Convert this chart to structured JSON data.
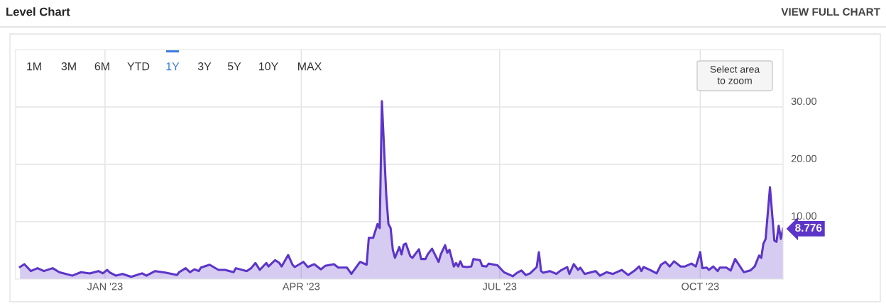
{
  "chart_data": {
    "type": "area",
    "title": "Level Chart",
    "annotations": [
      "VIEW FULL CHART",
      "1M",
      "3M",
      "6M",
      "YTD",
      "1Y",
      "3Y",
      "5Y",
      "10Y",
      "MAX",
      "Select area\nto zoom",
      {
        "text": "8.776",
        "x": "2023-11-08",
        "y": 8.776
      }
    ],
    "x": [
      "2022-11-23",
      "2022-11-25",
      "2022-11-28",
      "2022-12-01",
      "2022-12-04",
      "2022-12-08",
      "2022-12-11",
      "2022-12-17",
      "2022-12-21",
      "2022-12-25",
      "2022-12-29",
      "2022-12-31",
      "2023-01-02",
      "2023-01-03",
      "2023-01-06",
      "2023-01-09",
      "2023-01-13",
      "2023-01-18",
      "2023-01-20",
      "2023-01-24",
      "2023-01-29",
      "2023-02-03",
      "2023-02-04",
      "2023-02-07",
      "2023-02-09",
      "2023-02-11",
      "2023-02-13",
      "2023-02-14",
      "2023-02-18",
      "2023-02-22",
      "2023-02-25",
      "2023-03-01",
      "2023-03-02",
      "2023-03-07",
      "2023-03-09",
      "2023-03-11",
      "2023-03-13",
      "2023-03-16",
      "2023-03-17",
      "2023-03-20",
      "2023-03-22",
      "2023-03-23",
      "2023-03-26",
      "2023-03-28",
      "2023-03-29",
      "2023-04-02",
      "2023-04-04",
      "2023-04-07",
      "2023-04-10",
      "2023-04-12",
      "2023-04-16",
      "2023-04-18",
      "2023-04-22",
      "2023-04-24",
      "2023-04-28",
      "2023-05-01",
      "2023-05-02",
      "2023-05-04",
      "2023-05-06",
      "2023-05-07",
      "2023-05-08",
      "2023-05-10",
      "2023-05-11",
      "2023-05-12",
      "2023-05-13",
      "2023-05-14",
      "2023-05-16",
      "2023-05-17",
      "2023-05-18",
      "2023-05-19",
      "2023-05-21",
      "2023-05-22",
      "2023-05-25",
      "2023-05-26",
      "2023-05-28",
      "2023-05-29",
      "2023-05-31",
      "2023-06-03",
      "2023-06-04",
      "2023-06-06",
      "2023-06-07",
      "2023-06-08",
      "2023-06-10",
      "2023-06-11",
      "2023-06-12",
      "2023-06-13",
      "2023-06-14",
      "2023-06-16",
      "2023-06-18",
      "2023-06-19",
      "2023-06-22",
      "2023-06-23",
      "2023-06-25",
      "2023-06-26",
      "2023-06-30",
      "2023-07-03",
      "2023-07-07",
      "2023-07-09",
      "2023-07-11",
      "2023-07-13",
      "2023-07-15",
      "2023-07-18",
      "2023-07-19",
      "2023-07-20",
      "2023-07-21",
      "2023-07-24",
      "2023-07-27",
      "2023-07-29",
      "2023-08-01",
      "2023-08-02",
      "2023-08-04",
      "2023-08-06",
      "2023-08-07",
      "2023-08-09",
      "2023-08-14",
      "2023-08-16",
      "2023-08-19",
      "2023-08-22",
      "2023-08-26",
      "2023-08-29",
      "2023-09-01",
      "2023-09-03",
      "2023-09-04",
      "2023-09-05",
      "2023-09-08",
      "2023-09-11",
      "2023-09-13",
      "2023-09-15",
      "2023-09-17",
      "2023-09-19",
      "2023-09-22",
      "2023-09-24",
      "2023-09-27",
      "2023-09-29",
      "2023-10-01",
      "2023-10-02",
      "2023-10-04",
      "2023-10-05",
      "2023-10-07",
      "2023-10-09",
      "2023-10-10",
      "2023-10-13",
      "2023-10-15",
      "2023-10-17",
      "2023-10-21",
      "2023-10-24",
      "2023-10-26",
      "2023-10-28",
      "2023-10-29",
      "2023-10-30",
      "2023-10-31",
      "2023-11-02",
      "2023-11-04",
      "2023-11-05",
      "2023-11-06",
      "2023-11-07",
      "2023-11-08"
    ],
    "series": [
      {
        "color": "#5c35c8",
        "values": [
          2.1,
          2.6,
          1.4,
          1.9,
          1.4,
          1.9,
          1.2,
          0.6,
          1.2,
          1.0,
          1.4,
          1.0,
          1.6,
          1.2,
          0.6,
          0.9,
          0.4,
          1.0,
          0.6,
          1.4,
          1.1,
          0.7,
          1.2,
          1.9,
          1.2,
          1.7,
          1.4,
          2.0,
          2.5,
          1.6,
          1.6,
          1.2,
          1.9,
          1.4,
          1.9,
          2.8,
          1.6,
          2.8,
          2.2,
          3.3,
          2.8,
          2.2,
          4.2,
          2.5,
          2.1,
          3.0,
          2.1,
          2.6,
          1.7,
          2.3,
          2.6,
          2.0,
          2.0,
          0.9,
          3.0,
          2.5,
          7.2,
          7.2,
          9.6,
          8.9,
          31.0,
          14.6,
          9.6,
          8.9,
          5.1,
          3.7,
          5.6,
          4.3,
          6.0,
          6.2,
          4.0,
          3.7,
          5.2,
          3.5,
          3.5,
          4.3,
          5.3,
          3.0,
          4.3,
          5.9,
          4.6,
          5.1,
          2.2,
          2.8,
          2.2,
          3.1,
          2.2,
          2.1,
          2.2,
          3.5,
          3.3,
          2.3,
          2.2,
          2.7,
          2.4,
          1.2,
          0.5,
          1.1,
          1.5,
          0.7,
          1.0,
          2.1,
          4.7,
          1.4,
          1.1,
          1.4,
          0.9,
          1.5,
          2.1,
          0.9,
          2.6,
          1.6,
          2.0,
          0.9,
          1.4,
          0.6,
          1.2,
          0.9,
          1.6,
          0.7,
          1.5,
          2.2,
          1.4,
          2.1,
          1.6,
          1.0,
          2.5,
          3.0,
          2.2,
          3.1,
          2.2,
          2.2,
          2.7,
          2.2,
          4.7,
          1.9,
          2.0,
          1.6,
          2.2,
          1.4,
          2.0,
          2.0,
          1.5,
          3.5,
          1.2,
          1.5,
          2.2,
          4.1,
          3.7,
          6.2,
          7.0,
          16.0,
          6.7,
          6.5,
          9.3,
          7.0,
          8.776
        ]
      }
    ],
    "xlim": [
      "2022-11-21",
      "2023-11-08"
    ],
    "xticks": [
      {
        "value": "2023-01-01",
        "label": "JAN '23"
      },
      {
        "value": "2023-04-01",
        "label": "APR '23"
      },
      {
        "value": "2023-07-01",
        "label": "JUL '23"
      },
      {
        "value": "2023-10-01",
        "label": "OCT '23"
      }
    ],
    "ylim": [
      0,
      40
    ],
    "yticks": [
      {
        "value": 10,
        "label": "10.00"
      },
      {
        "value": 20,
        "label": "20.00"
      },
      {
        "value": 30,
        "label": "30.00"
      }
    ],
    "grid": true
  }
}
